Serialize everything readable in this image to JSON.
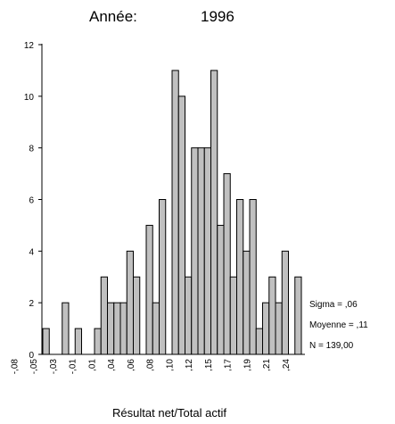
{
  "chart_data": {
    "type": "bar",
    "title": "Année:",
    "subtitle": "1996",
    "x_label": "Résultat net/Total actif",
    "categories": [
      "-,08",
      null,
      null,
      "-,05",
      null,
      null,
      "-,03",
      null,
      null,
      "-,01",
      null,
      null,
      ",01",
      null,
      null,
      ",04",
      null,
      null,
      ",06",
      null,
      null,
      ",08",
      null,
      null,
      ",10",
      null,
      null,
      ",12",
      null,
      null,
      ",15",
      null,
      null,
      ",17",
      null,
      null,
      ",19",
      null,
      null,
      ",21",
      null,
      null,
      ",24",
      null,
      null
    ],
    "values": [
      0,
      0,
      0,
      0,
      0,
      1,
      0,
      0,
      2,
      0,
      1,
      0,
      0,
      1,
      3,
      2,
      2,
      2,
      4,
      3,
      0,
      5,
      2,
      6,
      0,
      11,
      10,
      3,
      8,
      8,
      8,
      11,
      5,
      7,
      3,
      6,
      4,
      6,
      1,
      2,
      3,
      2,
      4,
      0,
      3
    ],
    "color": "#c0c0c0",
    "ylim": [
      0,
      12
    ],
    "yticks": [
      0,
      2,
      4,
      6,
      8,
      10,
      12
    ],
    "annotations": [
      "Sigma = ,06",
      "Moyenne = ,11",
      "N = 139,00"
    ]
  }
}
